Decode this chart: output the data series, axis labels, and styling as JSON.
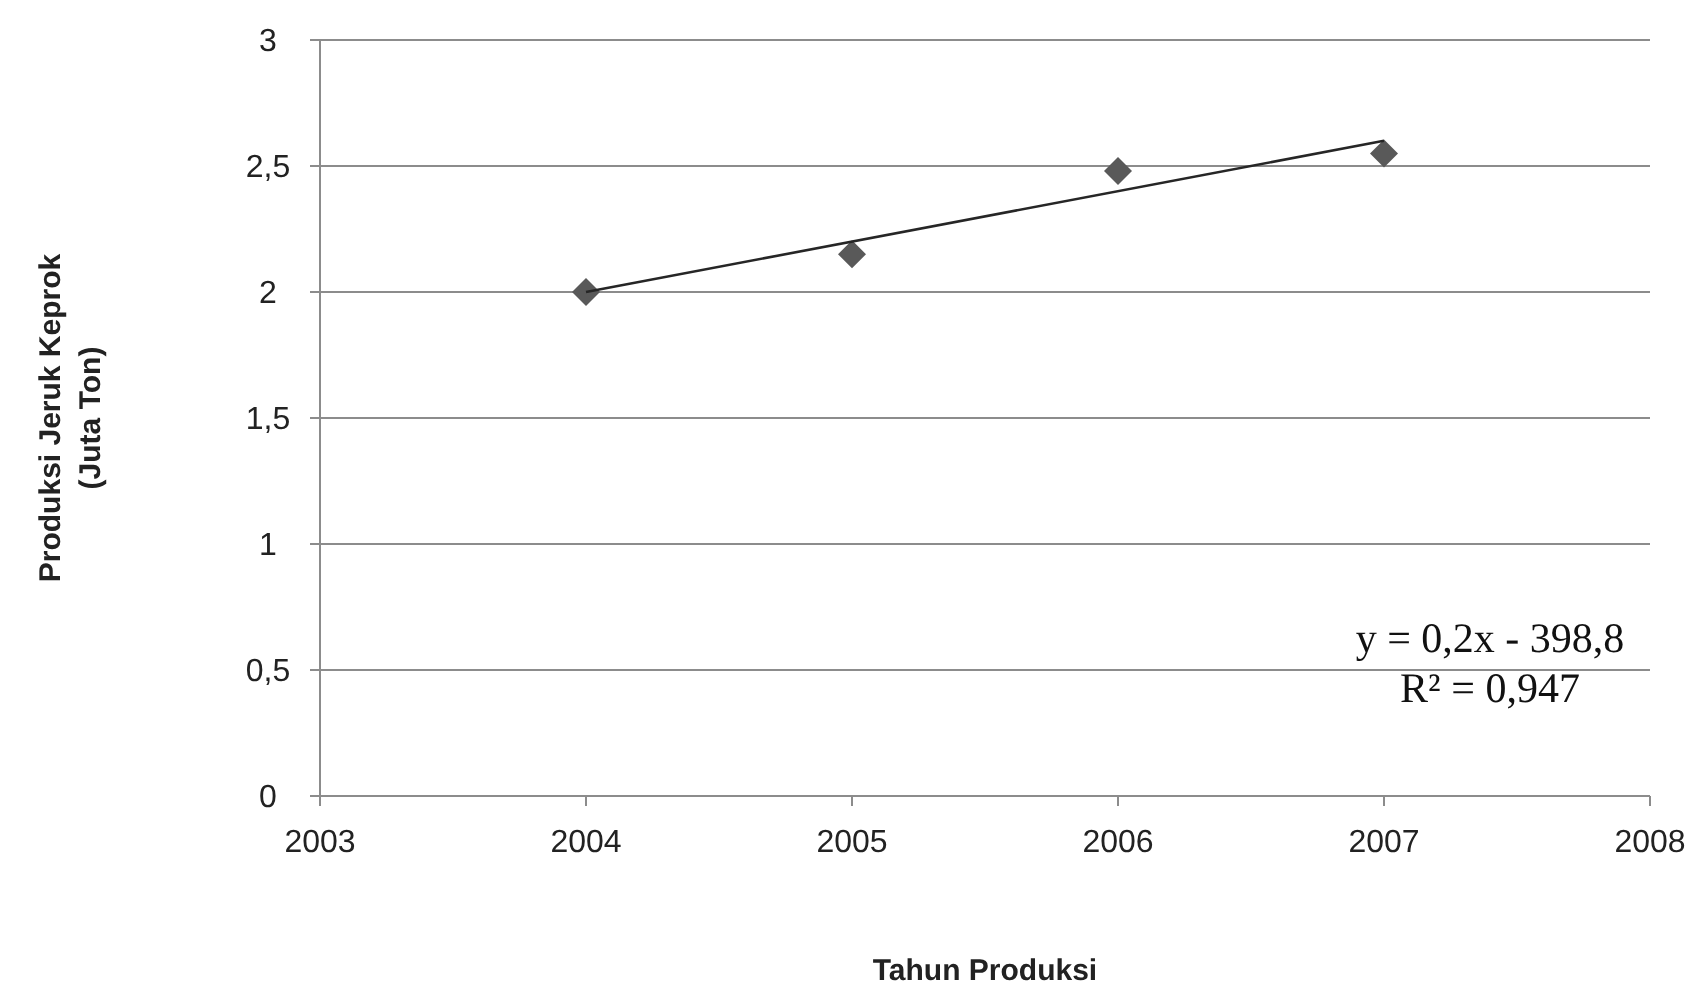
{
  "chart_data": {
    "type": "scatter",
    "xlabel": "Tahun Produksi",
    "ylabel": "Produksi Jeruk Keprok\n(Juta Ton)",
    "marker": "diamond",
    "grid": "y",
    "xlim": [
      2003,
      2008
    ],
    "xticks": [
      2003,
      2004,
      2005,
      2006,
      2007,
      2008
    ],
    "ylim": [
      0,
      3
    ],
    "yticks": [
      0,
      {
        "value": 0.5,
        "label": "0,5"
      },
      1,
      {
        "value": 1.5,
        "label": "1,5"
      },
      2,
      {
        "value": 2.5,
        "label": "2,5"
      },
      3
    ],
    "series": [
      {
        "color": "#595959",
        "x": [
          2004,
          2005,
          2006,
          2007
        ],
        "values": [
          2.0,
          2.15,
          2.48,
          2.55
        ]
      },
      {
        "type": "line",
        "color": "#262626",
        "marker": "none",
        "line_style": "solid",
        "x": [
          2004,
          2007
        ],
        "values": [
          2.0,
          2.6
        ]
      }
    ],
    "annotations": [
      "y = 0,2x - 398,8",
      "R² = 0,947"
    ]
  }
}
